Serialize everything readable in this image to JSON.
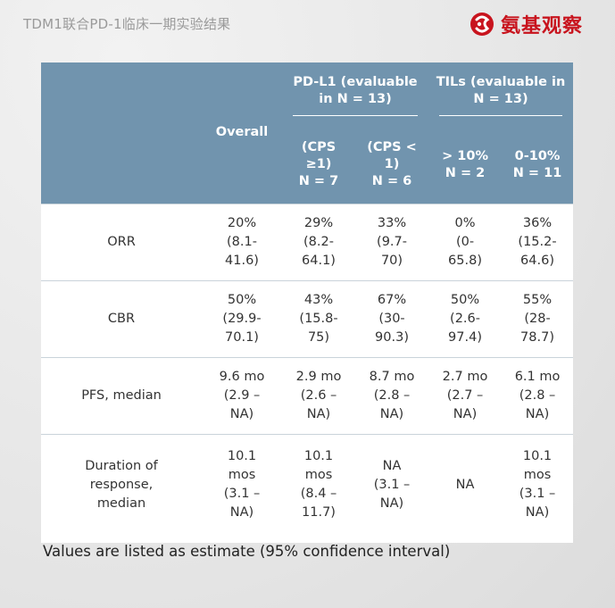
{
  "header": {
    "title": "TDM1联合PD-1临床一期实验结果",
    "logo_text": "氨基观察"
  },
  "table": {
    "overall_label": "Overall",
    "groups": [
      {
        "label_lines": [
          "PD-L1 (evaluable",
          "in N = 13)"
        ]
      },
      {
        "label_lines": [
          "TILs (evaluable in",
          "N = 13)"
        ]
      }
    ],
    "subcolumns": [
      {
        "lines": [
          "(CPS",
          "≥1)",
          "N = 7"
        ]
      },
      {
        "lines": [
          "(CPS <",
          "1)",
          "N = 6"
        ]
      },
      {
        "lines": [
          "> 10%",
          "N = 2"
        ]
      },
      {
        "lines": [
          "0-10%",
          "N = 11"
        ]
      }
    ],
    "rows": [
      {
        "label_lines": [
          "ORR"
        ],
        "cells": [
          [
            "20%",
            "(8.1-",
            "41.6)"
          ],
          [
            "29%",
            "(8.2-",
            "64.1)"
          ],
          [
            "33%",
            "(9.7-",
            "70)"
          ],
          [
            "0%",
            "(0-",
            "65.8)"
          ],
          [
            "36%",
            "(15.2-",
            "64.6)"
          ]
        ]
      },
      {
        "label_lines": [
          "CBR"
        ],
        "cells": [
          [
            "50%",
            "(29.9-",
            "70.1)"
          ],
          [
            "43%",
            "(15.8-",
            "75)"
          ],
          [
            "67%",
            "(30-",
            "90.3)"
          ],
          [
            "50%",
            "(2.6-",
            "97.4)"
          ],
          [
            "55%",
            "(28-",
            "78.7)"
          ]
        ]
      },
      {
        "label_lines": [
          "PFS, median"
        ],
        "cells": [
          [
            "9.6 mo",
            "(2.9 –",
            "NA)"
          ],
          [
            "2.9 mo",
            "(2.6 –",
            "NA)"
          ],
          [
            "8.7 mo",
            "(2.8 –",
            "NA)"
          ],
          [
            "2.7 mo",
            "(2.7 –",
            "NA)"
          ],
          [
            "6.1 mo",
            "(2.8 –",
            "NA)"
          ]
        ]
      },
      {
        "label_lines": [
          "Duration of",
          "response,",
          "median"
        ],
        "cells": [
          [
            "10.1",
            "mos",
            "(3.1 –",
            "NA)"
          ],
          [
            "10.1",
            "mos",
            "(8.4 –",
            "11.7)"
          ],
          [
            "NA",
            "(3.1 –",
            "NA)"
          ],
          [
            "NA"
          ],
          [
            "10.1",
            "mos",
            "(3.1 –",
            "NA)"
          ]
        ]
      }
    ]
  },
  "footnote": "Values are listed as estimate (95% confidence interval)",
  "colors": {
    "header_bg": "#7194ae",
    "logo_red": "#c8141e",
    "page_bg": "#e9e9e9"
  }
}
